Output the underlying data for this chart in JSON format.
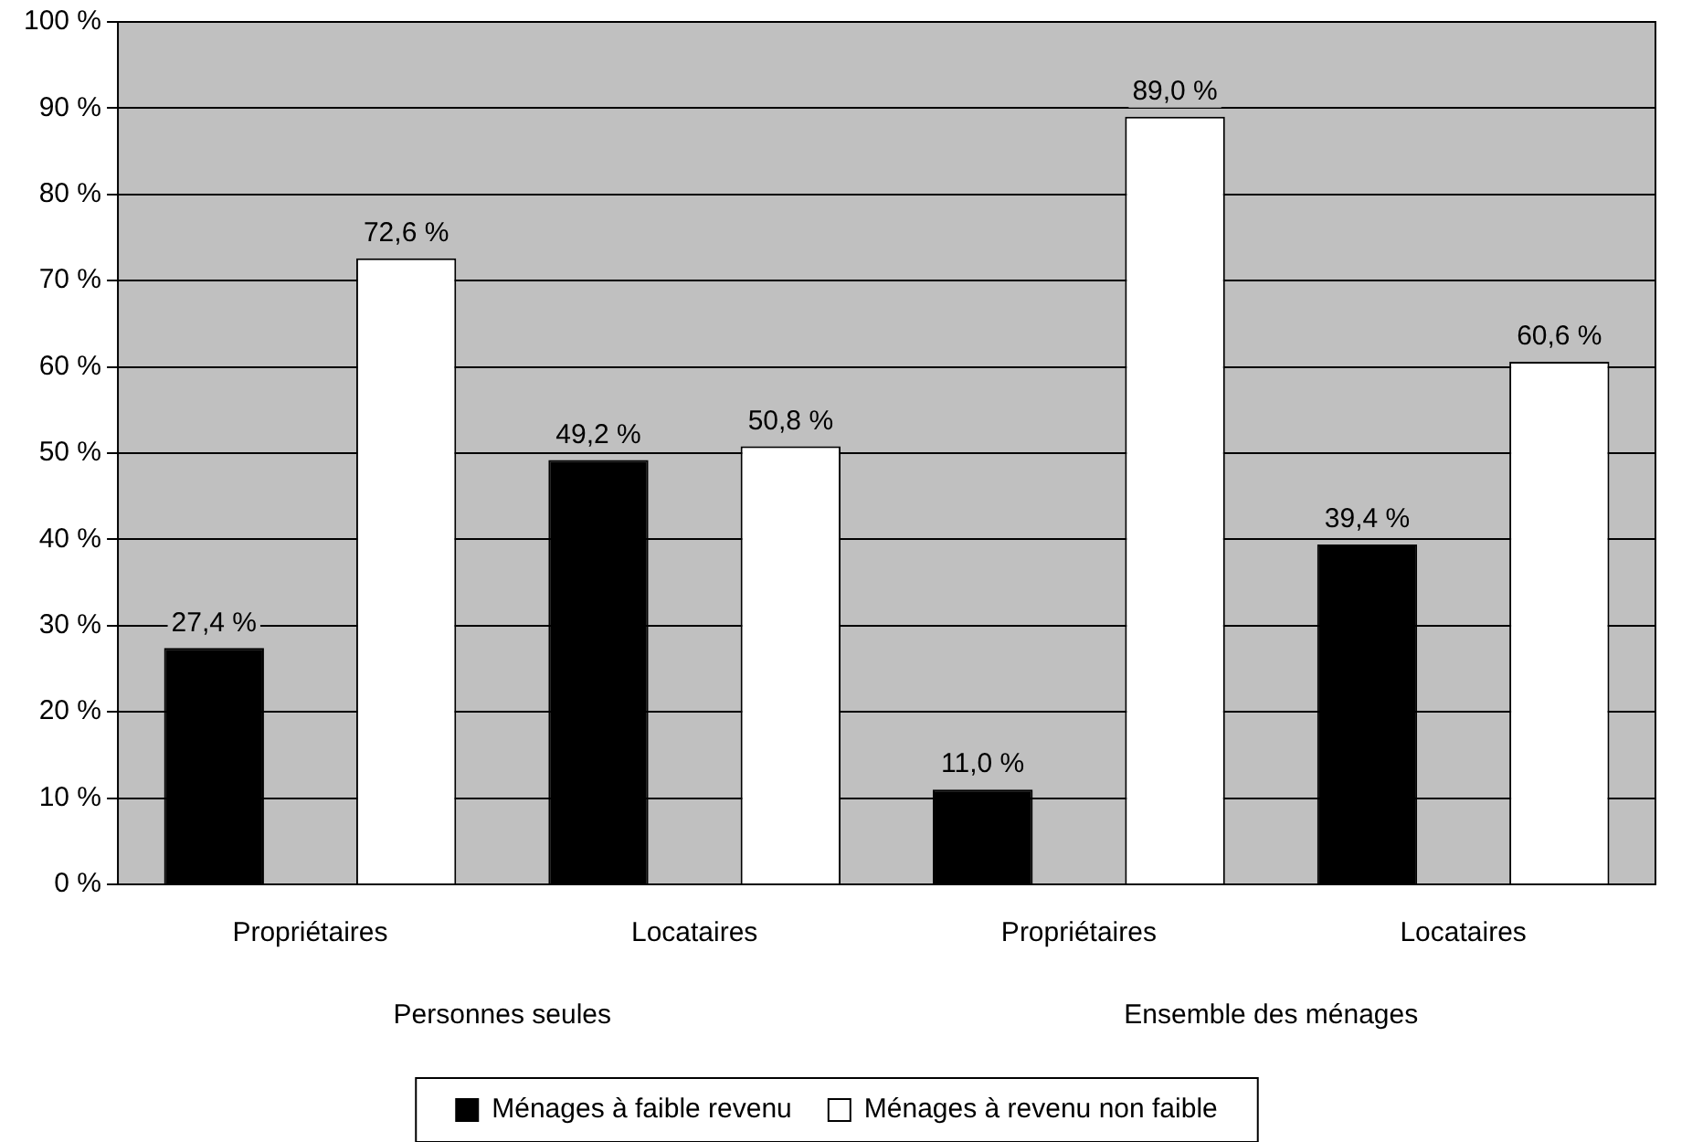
{
  "chart_data": {
    "type": "bar",
    "categories": [
      "Propriétaires",
      "Locataires",
      "Propriétaires",
      "Locataires"
    ],
    "annotations": [
      "Personnes seules",
      "Ensemble des ménages"
    ],
    "series": [
      {
        "name": "Ménages à faible revenu",
        "color": "#000000",
        "values": [
          27.4,
          49.2,
          11.0,
          39.4
        ],
        "value_labels": [
          "27,4 %",
          "49,2 %",
          "11,0 %",
          "39,4 %"
        ]
      },
      {
        "name": "Ménages à revenu non faible",
        "color": "#ffffff",
        "values": [
          72.6,
          50.8,
          89.0,
          60.6
        ],
        "value_labels": [
          "72,6 %",
          "50,8 %",
          "89,0 %",
          "60,6 %"
        ]
      }
    ],
    "ylim": [
      0,
      100
    ],
    "yticks": [
      {
        "value": 0,
        "label": "0 %"
      },
      {
        "value": 10,
        "label": "10 %"
      },
      {
        "value": 20,
        "label": "20 %"
      },
      {
        "value": 30,
        "label": "30 %"
      },
      {
        "value": 40,
        "label": "40 %"
      },
      {
        "value": 50,
        "label": "50 %"
      },
      {
        "value": 60,
        "label": "60 %"
      },
      {
        "value": 70,
        "label": "70 %"
      },
      {
        "value": 80,
        "label": "80 %"
      },
      {
        "value": 90,
        "label": "90 %"
      },
      {
        "value": 100,
        "label": "100 %"
      }
    ],
    "grid": "y",
    "legend": "bottom"
  }
}
